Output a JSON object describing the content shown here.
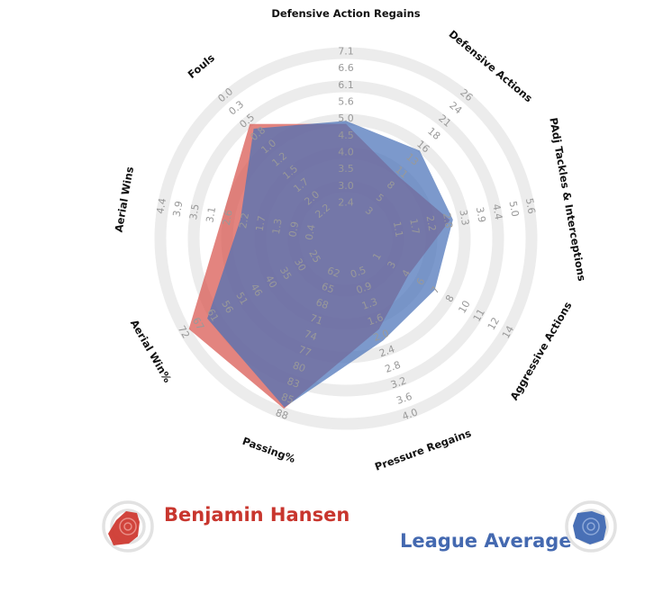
{
  "chart_data": {
    "type": "radar",
    "axes": [
      {
        "label": "Defensive Action Regains",
        "ticks": [
          "2.4",
          "3.0",
          "3.5",
          "4.0",
          "4.5",
          "5.0",
          "5.6",
          "6.1",
          "6.6",
          "7.1"
        ]
      },
      {
        "label": "Defensive Actions",
        "ticks": [
          "3",
          "5",
          "8",
          "11",
          "13",
          "16",
          "18",
          "21",
          "24",
          "26"
        ]
      },
      {
        "label": "PAdj Tackles & Interceptions",
        "ticks": [
          "1.1",
          "1.7",
          "2.2",
          "2.8",
          "3.3",
          "3.9",
          "4.4",
          "5.0",
          "5.6"
        ]
      },
      {
        "label": "Aggressive Actions",
        "ticks": [
          "1",
          "3",
          "4",
          "6",
          "7",
          "8",
          "10",
          "11",
          "12",
          "14"
        ]
      },
      {
        "label": "Pressure Regains",
        "ticks": [
          "0.5",
          "0.9",
          "1.3",
          "1.6",
          "2.0",
          "2.4",
          "2.8",
          "3.2",
          "3.6",
          "4.0"
        ]
      },
      {
        "label": "Passing%",
        "ticks": [
          "62",
          "65",
          "68",
          "71",
          "74",
          "77",
          "80",
          "83",
          "85",
          "88"
        ]
      },
      {
        "label": "Aerial Win%",
        "ticks": [
          "25",
          "30",
          "35",
          "40",
          "46",
          "51",
          "56",
          "61",
          "67",
          "72"
        ]
      },
      {
        "label": "Aerial Wins",
        "ticks": [
          "0.4",
          "0.9",
          "1.3",
          "1.7",
          "2.2",
          "2.6",
          "3.1",
          "3.5",
          "3.9",
          "4.4"
        ]
      },
      {
        "label": "Fouls",
        "ticks": [
          "2.2",
          "2.0",
          "1.7",
          "1.5",
          "1.2",
          "1.0",
          "0.8",
          "0.5",
          "0.3",
          "0.0"
        ]
      }
    ],
    "series": [
      {
        "name": "Benjamin Hansen",
        "color": "#d8554d",
        "values": [
          0.52,
          0.3,
          0.46,
          0.24,
          0.4,
          0.96,
          0.96,
          0.59,
          0.75
        ]
      },
      {
        "name": "League Average",
        "color": "#4a72b8",
        "values": [
          0.54,
          0.52,
          0.48,
          0.44,
          0.48,
          0.95,
          0.82,
          0.47,
          0.71
        ]
      }
    ]
  },
  "legend": {
    "player": {
      "name": "Benjamin Hansen",
      "color": "#c8362e"
    },
    "average": {
      "name": "League Average",
      "color": "#4469b0"
    }
  }
}
